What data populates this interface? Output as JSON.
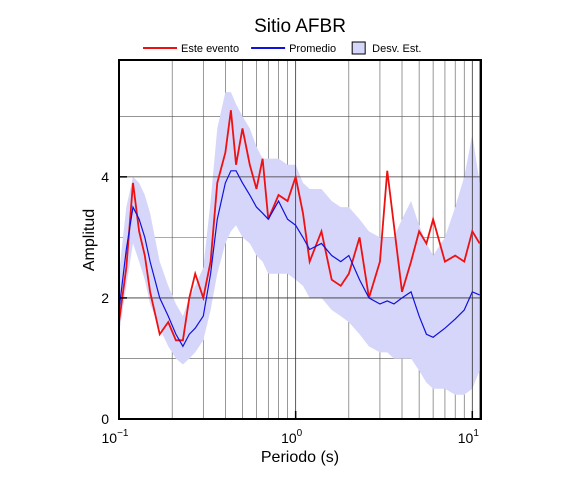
{
  "chart_data": {
    "type": "line",
    "title": "Sitio AFBR",
    "xlabel": "Periodo (s)",
    "ylabel": "Amplitud",
    "xlog": true,
    "xlim": [
      0.1,
      11.2
    ],
    "ylim": [
      0,
      5.93
    ],
    "xticks": [
      {
        "value": 0.1,
        "label": "10",
        "exponent": "−1"
      },
      {
        "value": 1,
        "label": "10",
        "exponent": "0"
      },
      {
        "value": 10,
        "label": "10",
        "exponent": "1"
      }
    ],
    "xgrid": [
      0.2,
      0.3,
      0.4,
      0.5,
      0.6,
      0.7,
      0.8,
      0.9,
      2,
      3,
      4,
      5,
      6,
      7,
      8,
      9,
      11
    ],
    "yticks": [
      0,
      2,
      4
    ],
    "ygrid": [
      1,
      3,
      5
    ],
    "grid": true,
    "legend": "top",
    "x": [
      0.1,
      0.11,
      0.12,
      0.13,
      0.14,
      0.15,
      0.17,
      0.19,
      0.21,
      0.23,
      0.25,
      0.27,
      0.3,
      0.33,
      0.36,
      0.4,
      0.43,
      0.46,
      0.5,
      0.55,
      0.6,
      0.65,
      0.7,
      0.8,
      0.9,
      1.0,
      1.1,
      1.2,
      1.4,
      1.6,
      1.8,
      2.0,
      2.3,
      2.6,
      3.0,
      3.3,
      3.6,
      4.0,
      4.5,
      5.0,
      5.5,
      6,
      7,
      8,
      9,
      10,
      11
    ],
    "band": {
      "name": "Desv. Est.",
      "color": "#d6d6fa",
      "upper": [
        2.4,
        3.5,
        4.0,
        3.9,
        3.7,
        3.4,
        2.6,
        2.2,
        1.9,
        1.7,
        2.0,
        2.2,
        2.5,
        3.6,
        4.8,
        5.4,
        5.4,
        5.2,
        5.0,
        4.8,
        4.5,
        4.3,
        4.3,
        4.3,
        4.2,
        4.2,
        3.9,
        3.8,
        3.8,
        3.6,
        3.5,
        3.5,
        3.3,
        3.1,
        3.0,
        3.0,
        3.0,
        3.3,
        3.6,
        3.2,
        2.9,
        2.7,
        3.0,
        3.5,
        4.0,
        4.7,
        3.9
      ],
      "lower": [
        1.4,
        2.2,
        2.9,
        2.6,
        2.3,
        1.9,
        1.5,
        1.2,
        1.0,
        0.9,
        1.0,
        1.1,
        1.3,
        1.8,
        2.4,
        2.9,
        3.1,
        3.2,
        3.0,
        2.9,
        2.7,
        2.6,
        2.4,
        2.4,
        2.4,
        2.3,
        2.2,
        2.0,
        2.0,
        1.8,
        1.7,
        1.6,
        1.4,
        1.2,
        1.1,
        1.1,
        1.0,
        1.0,
        1.0,
        0.8,
        0.6,
        0.5,
        0.5,
        0.4,
        0.4,
        0.5,
        0.8
      ]
    },
    "series": [
      {
        "name": "Este evento",
        "color": "#ee1111",
        "values": [
          1.6,
          2.5,
          3.9,
          3.1,
          2.7,
          2.1,
          1.4,
          1.6,
          1.3,
          1.3,
          2.0,
          2.4,
          2.0,
          2.6,
          3.9,
          4.4,
          5.1,
          4.2,
          4.8,
          4.2,
          3.8,
          4.3,
          3.3,
          3.7,
          3.6,
          4.0,
          3.4,
          2.6,
          3.1,
          2.3,
          2.2,
          2.4,
          3.0,
          2.0,
          2.6,
          4.1,
          3.2,
          2.1,
          2.6,
          3.1,
          2.9,
          3.3,
          2.6,
          2.7,
          2.6,
          3.1,
          2.9
        ]
      },
      {
        "name": "Promedio",
        "color": "#1111dd",
        "values": [
          1.8,
          2.8,
          3.5,
          3.3,
          3.0,
          2.6,
          2.0,
          1.7,
          1.4,
          1.2,
          1.4,
          1.5,
          1.7,
          2.4,
          3.3,
          3.9,
          4.1,
          4.1,
          3.9,
          3.7,
          3.5,
          3.4,
          3.3,
          3.6,
          3.3,
          3.2,
          3.0,
          2.8,
          2.9,
          2.7,
          2.6,
          2.7,
          2.3,
          2.0,
          1.9,
          1.95,
          1.9,
          2.0,
          2.1,
          1.7,
          1.4,
          1.35,
          1.5,
          1.65,
          1.8,
          2.1,
          2.05
        ]
      }
    ]
  }
}
